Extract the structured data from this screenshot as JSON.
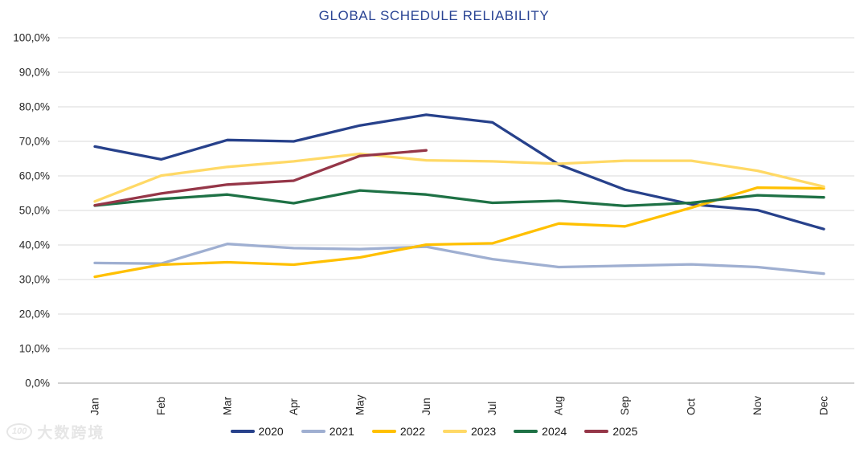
{
  "title": "GLOBAL SCHEDULE RELIABILITY",
  "watermark": {
    "logo": "100",
    "text": "大数跨境"
  },
  "chart_data": {
    "type": "line",
    "title": "GLOBAL SCHEDULE RELIABILITY",
    "title_color": "#2A4494",
    "xlabel": "",
    "ylabel": "",
    "ylim": [
      0,
      100
    ],
    "y_tick_step": 10,
    "y_tick_labels": [
      "100,0%",
      "90,0%",
      "80,0%",
      "70,0%",
      "60,0%",
      "50,0%",
      "40,0%",
      "30,0%",
      "20,0%",
      "10,0%",
      "0,0%"
    ],
    "grid": true,
    "grid_color": "#D9D9D9",
    "axis_line_color": "#A6A6A6",
    "tick_label_color": "#262626",
    "legend_position": "bottom",
    "categories": [
      "Jan",
      "Feb",
      "Mar",
      "Apr",
      "May",
      "Jun",
      "Jul",
      "Aug",
      "Sep",
      "Oct",
      "Nov",
      "Dec"
    ],
    "series": [
      {
        "name": "2020",
        "color": "#27418B",
        "values": [
          68.5,
          64.8,
          70.4,
          70.0,
          74.6,
          77.7,
          75.5,
          63.3,
          56.0,
          51.8,
          50.1,
          44.6
        ]
      },
      {
        "name": "2021",
        "color": "#9FAFD1",
        "values": [
          34.8,
          34.6,
          40.3,
          39.1,
          38.8,
          39.5,
          35.9,
          33.6,
          34.0,
          34.4,
          33.6,
          31.7
        ]
      },
      {
        "name": "2022",
        "color": "#FFC000",
        "values": [
          30.8,
          34.3,
          35.0,
          34.3,
          36.4,
          40.1,
          40.5,
          46.2,
          45.4,
          50.8,
          56.6,
          56.4
        ]
      },
      {
        "name": "2023",
        "color": "#FFD966",
        "values": [
          52.6,
          60.1,
          62.6,
          64.2,
          66.4,
          64.5,
          64.2,
          63.5,
          64.4,
          64.4,
          61.5,
          56.9
        ]
      },
      {
        "name": "2024",
        "color": "#1E7145",
        "values": [
          51.4,
          53.3,
          54.6,
          52.1,
          55.8,
          54.6,
          52.2,
          52.8,
          51.3,
          52.2,
          54.4,
          53.8
        ]
      },
      {
        "name": "2025",
        "color": "#953648",
        "values": [
          51.5,
          54.9,
          57.5,
          58.6,
          65.8,
          67.4
        ]
      }
    ]
  }
}
